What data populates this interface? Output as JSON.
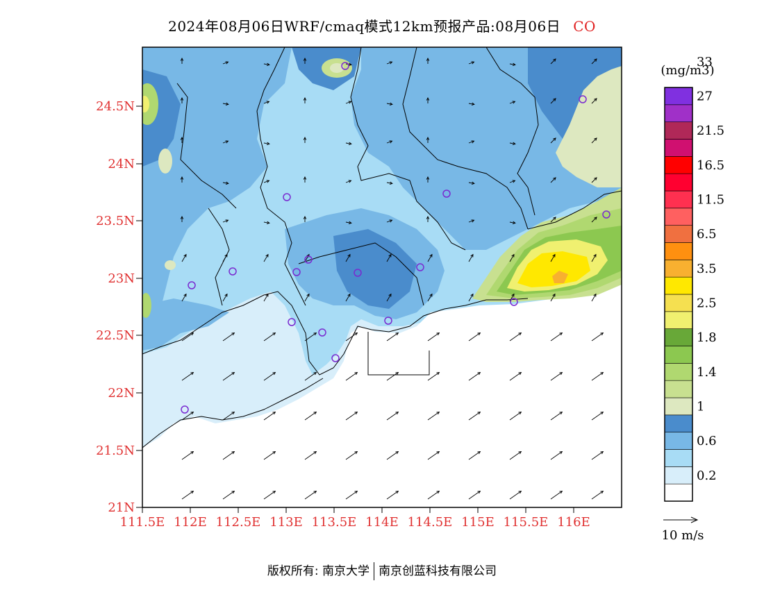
{
  "title": {
    "main": "2024年08月06日WRF/cmaq模式12km预报产品:08月06日",
    "species": "CO"
  },
  "axes": {
    "lat_labels": [
      "24.5N",
      "24N",
      "23.5N",
      "23N",
      "22.5N",
      "22N",
      "21.5N",
      "21N"
    ],
    "lon_labels": [
      "111.5E",
      "112E",
      "112.5E",
      "113E",
      "113.5E",
      "114E",
      "114.5E",
      "115E",
      "115.5E",
      "116E"
    ]
  },
  "colorbar": {
    "unit": "(mg/m3)",
    "colors": [
      "#ffffff",
      "#d8eefa",
      "#a8dcf5",
      "#78b8e6",
      "#4a8ccc",
      "#dde8c0",
      "#c8e090",
      "#b0d870",
      "#8cc850",
      "#68a838",
      "#f0f070",
      "#f5e050",
      "#ffe800",
      "#f8b030",
      "#ff9010",
      "#f07040",
      "#ff6060",
      "#ff3050",
      "#ff0030",
      "#ff0000",
      "#d01070",
      "#b02858",
      "#a030c8",
      "#8030e0"
    ],
    "labels": [
      "0.2",
      "0.6",
      "1",
      "1.4",
      "1.8",
      "2.5",
      "3.5",
      "6.5",
      "11.5",
      "16.5",
      "21.5",
      "27",
      "33"
    ]
  },
  "wind_legend": "10 m/s",
  "footer": {
    "left": "版权所有: 南京大学",
    "right": "南京创蓝科技有限公司"
  }
}
